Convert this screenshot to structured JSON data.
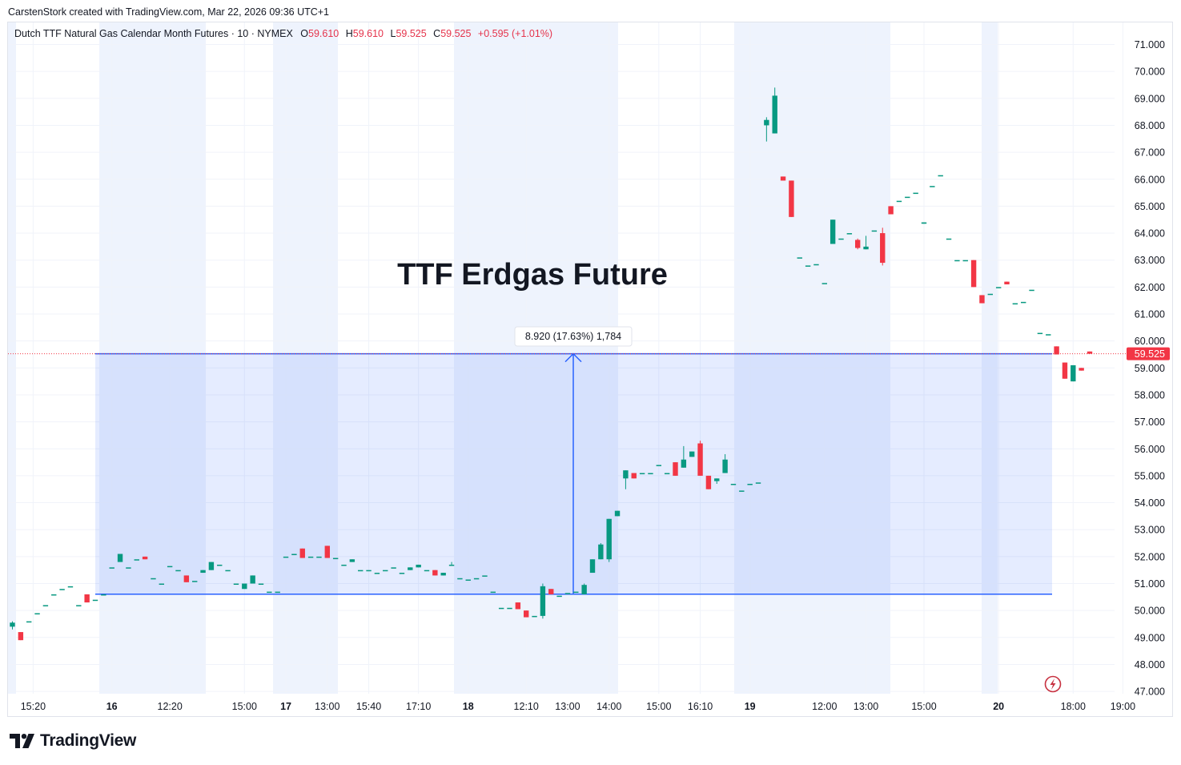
{
  "header": {
    "creator_line": "CarstenStork created with TradingView.com, Mar 22, 2026 09:36 UTC+1"
  },
  "legend": {
    "symbol": "Dutch TTF Natural Gas Calendar Month Futures · 10 · NYMEX",
    "open_label": "O",
    "open_value": "59.610",
    "high_label": "H",
    "high_value": "59.610",
    "low_label": "L",
    "low_value": "59.525",
    "close_label": "C",
    "close_value": "59.525",
    "change": "+0.595 (+1.01%)"
  },
  "annotation": {
    "title": "TTF Erdgas Future",
    "measure_label": "8.920 (17.63%) 1,784",
    "range_low": 50.605,
    "range_high": 59.525
  },
  "last_price": {
    "value": 59.525,
    "label": "59.525"
  },
  "footer": {
    "brand": "TradingView",
    "logo_icon": "tradingview-logo-icon",
    "alert_icon": "lightning-icon"
  },
  "colors": {
    "up": "#089981",
    "down": "#f23645",
    "measure": "#2962ff",
    "session_band": "#eef3fd",
    "price_label_bg": "#f23645"
  },
  "chart_data": {
    "type": "candlestick",
    "ylim": [
      46.6,
      71.4
    ],
    "y_ticks": [
      47,
      48,
      49,
      50,
      51,
      52,
      53,
      54,
      55,
      56,
      57,
      58,
      59,
      60,
      61,
      62,
      63,
      64,
      65,
      66,
      67,
      68,
      69,
      70,
      71
    ],
    "y_tick_labels": [
      "47.000",
      "48.000",
      "49.000",
      "50.000",
      "51.000",
      "52.000",
      "53.000",
      "54.000",
      "55.000",
      "56.000",
      "57.000",
      "58.000",
      "59.000",
      "60.000",
      "61.000",
      "62.000",
      "63.000",
      "64.000",
      "65.000",
      "66.000",
      "67.000",
      "68.000",
      "69.000",
      "70.000",
      "71.000"
    ],
    "x_axis_labels": [
      {
        "label": "15:20",
        "bar": 2.5,
        "bold": false
      },
      {
        "label": "16",
        "bar": 12,
        "bold": true
      },
      {
        "label": "12:20",
        "bar": 19,
        "bold": false
      },
      {
        "label": "15:00",
        "bar": 28,
        "bold": false
      },
      {
        "label": "17",
        "bar": 33,
        "bold": true
      },
      {
        "label": "13:00",
        "bar": 38,
        "bold": false
      },
      {
        "label": "15:40",
        "bar": 43,
        "bold": false
      },
      {
        "label": "17:10",
        "bar": 49,
        "bold": false
      },
      {
        "label": "18",
        "bar": 55,
        "bold": true
      },
      {
        "label": "12:10",
        "bar": 62,
        "bold": false
      },
      {
        "label": "13:00",
        "bar": 67,
        "bold": false
      },
      {
        "label": "14:00",
        "bar": 72,
        "bold": false
      },
      {
        "label": "15:00",
        "bar": 78,
        "bold": false
      },
      {
        "label": "16:10",
        "bar": 83,
        "bold": false
      },
      {
        "label": "19",
        "bar": 89,
        "bold": true
      },
      {
        "label": "12:00",
        "bar": 98,
        "bold": false
      },
      {
        "label": "13:00",
        "bar": 103,
        "bold": false
      },
      {
        "label": "15:00",
        "bar": 110,
        "bold": false
      },
      {
        "label": "20",
        "bar": 119,
        "bold": true
      },
      {
        "label": "18:00",
        "bar": 128,
        "bold": false
      },
      {
        "label": "19:00",
        "bar": 134,
        "bold": false
      }
    ],
    "candles": [
      {
        "o": 49.4,
        "h": 49.6,
        "l": 49.3,
        "c": 49.55
      },
      {
        "o": 49.2,
        "h": 49.2,
        "l": 48.9,
        "c": 48.9
      },
      {
        "o": 49.6,
        "h": 49.6,
        "l": 49.6,
        "c": 49.6
      },
      {
        "o": 49.9,
        "h": 49.9,
        "l": 49.9,
        "c": 49.9
      },
      {
        "o": 50.2,
        "h": 50.2,
        "l": 50.2,
        "c": 50.2
      },
      {
        "o": 50.6,
        "h": 50.6,
        "l": 50.6,
        "c": 50.6
      },
      {
        "o": 50.8,
        "h": 50.8,
        "l": 50.8,
        "c": 50.8
      },
      {
        "o": 50.9,
        "h": 50.9,
        "l": 50.9,
        "c": 50.9
      },
      {
        "o": 50.2,
        "h": 50.2,
        "l": 50.2,
        "c": 50.2
      },
      {
        "o": 50.6,
        "h": 50.6,
        "l": 50.3,
        "c": 50.3
      },
      {
        "o": 50.4,
        "h": 50.4,
        "l": 50.4,
        "c": 50.4
      },
      {
        "o": 50.6,
        "h": 50.6,
        "l": 50.6,
        "c": 50.6
      },
      {
        "o": 51.6,
        "h": 51.6,
        "l": 51.6,
        "c": 51.6
      },
      {
        "o": 51.8,
        "h": 52.1,
        "l": 51.8,
        "c": 52.1
      },
      {
        "o": 51.6,
        "h": 51.6,
        "l": 51.6,
        "c": 51.6
      },
      {
        "o": 51.9,
        "h": 51.9,
        "l": 51.9,
        "c": 51.9
      },
      {
        "o": 52.0,
        "h": 52.0,
        "l": 51.9,
        "c": 51.9
      },
      {
        "o": 51.2,
        "h": 51.2,
        "l": 51.2,
        "c": 51.2
      },
      {
        "o": 51.0,
        "h": 51.0,
        "l": 51.0,
        "c": 51.0
      },
      {
        "o": 51.65,
        "h": 51.65,
        "l": 51.65,
        "c": 51.65
      },
      {
        "o": 51.5,
        "h": 51.5,
        "l": 51.5,
        "c": 51.5
      },
      {
        "o": 51.3,
        "h": 51.3,
        "l": 51.05,
        "c": 51.05
      },
      {
        "o": 51.1,
        "h": 51.1,
        "l": 51.1,
        "c": 51.1
      },
      {
        "o": 51.4,
        "h": 51.5,
        "l": 51.4,
        "c": 51.5
      },
      {
        "o": 51.5,
        "h": 51.8,
        "l": 51.5,
        "c": 51.8
      },
      {
        "o": 51.7,
        "h": 51.7,
        "l": 51.7,
        "c": 51.7
      },
      {
        "o": 51.5,
        "h": 51.5,
        "l": 51.5,
        "c": 51.5
      },
      {
        "o": 51.0,
        "h": 51.0,
        "l": 51.0,
        "c": 51.0
      },
      {
        "o": 50.8,
        "h": 51.0,
        "l": 50.8,
        "c": 51.0
      },
      {
        "o": 51.0,
        "h": 51.3,
        "l": 51.0,
        "c": 51.3
      },
      {
        "o": 51.0,
        "h": 51.0,
        "l": 51.0,
        "c": 51.0
      },
      {
        "o": 50.7,
        "h": 50.7,
        "l": 50.7,
        "c": 50.7
      },
      {
        "o": 50.7,
        "h": 50.7,
        "l": 50.7,
        "c": 50.7
      },
      {
        "o": 52.0,
        "h": 52.0,
        "l": 52.0,
        "c": 52.0
      },
      {
        "o": 52.1,
        "h": 52.1,
        "l": 52.1,
        "c": 52.1
      },
      {
        "o": 52.3,
        "h": 52.3,
        "l": 51.95,
        "c": 51.95
      },
      {
        "o": 52.0,
        "h": 52.0,
        "l": 52.0,
        "c": 52.0
      },
      {
        "o": 52.0,
        "h": 52.0,
        "l": 52.0,
        "c": 52.0
      },
      {
        "o": 52.4,
        "h": 52.4,
        "l": 51.95,
        "c": 51.95
      },
      {
        "o": 51.95,
        "h": 51.95,
        "l": 51.95,
        "c": 51.95
      },
      {
        "o": 51.7,
        "h": 51.7,
        "l": 51.7,
        "c": 51.7
      },
      {
        "o": 51.8,
        "h": 51.9,
        "l": 51.8,
        "c": 51.9
      },
      {
        "o": 51.5,
        "h": 51.5,
        "l": 51.5,
        "c": 51.5
      },
      {
        "o": 51.5,
        "h": 51.5,
        "l": 51.5,
        "c": 51.5
      },
      {
        "o": 51.4,
        "h": 51.4,
        "l": 51.4,
        "c": 51.4
      },
      {
        "o": 51.5,
        "h": 51.5,
        "l": 51.5,
        "c": 51.5
      },
      {
        "o": 51.6,
        "h": 51.6,
        "l": 51.6,
        "c": 51.6
      },
      {
        "o": 51.4,
        "h": 51.4,
        "l": 51.4,
        "c": 51.4
      },
      {
        "o": 51.5,
        "h": 51.6,
        "l": 51.5,
        "c": 51.6
      },
      {
        "o": 51.6,
        "h": 51.7,
        "l": 51.6,
        "c": 51.7
      },
      {
        "o": 51.5,
        "h": 51.5,
        "l": 51.5,
        "c": 51.5
      },
      {
        "o": 51.5,
        "h": 51.5,
        "l": 51.3,
        "c": 51.3
      },
      {
        "o": 51.3,
        "h": 51.4,
        "l": 51.3,
        "c": 51.4
      },
      {
        "o": 51.7,
        "h": 51.8,
        "l": 51.7,
        "c": 51.7
      },
      {
        "o": 51.2,
        "h": 51.2,
        "l": 51.2,
        "c": 51.2
      },
      {
        "o": 51.15,
        "h": 51.15,
        "l": 51.15,
        "c": 51.15
      },
      {
        "o": 51.2,
        "h": 51.2,
        "l": 51.2,
        "c": 51.2
      },
      {
        "o": 51.3,
        "h": 51.3,
        "l": 51.3,
        "c": 51.3
      },
      {
        "o": 50.7,
        "h": 50.7,
        "l": 50.7,
        "c": 50.7
      },
      {
        "o": 50.1,
        "h": 50.1,
        "l": 50.1,
        "c": 50.1
      },
      {
        "o": 50.1,
        "h": 50.1,
        "l": 50.1,
        "c": 50.1
      },
      {
        "o": 50.3,
        "h": 50.3,
        "l": 50.05,
        "c": 50.05
      },
      {
        "o": 50.0,
        "h": 50.0,
        "l": 49.75,
        "c": 49.75
      },
      {
        "o": 49.8,
        "h": 49.8,
        "l": 49.8,
        "c": 49.8
      },
      {
        "o": 49.8,
        "h": 51.0,
        "l": 49.7,
        "c": 50.9
      },
      {
        "o": 50.8,
        "h": 50.8,
        "l": 50.6,
        "c": 50.6
      },
      {
        "o": 50.55,
        "h": 50.55,
        "l": 50.55,
        "c": 50.55
      },
      {
        "o": 50.65,
        "h": 50.65,
        "l": 50.65,
        "c": 50.65
      },
      {
        "o": 50.7,
        "h": 50.7,
        "l": 50.7,
        "c": 50.7
      },
      {
        "o": 50.6,
        "h": 51.0,
        "l": 50.6,
        "c": 50.95
      },
      {
        "o": 51.4,
        "h": 51.9,
        "l": 51.4,
        "c": 51.9
      },
      {
        "o": 51.9,
        "h": 52.5,
        "l": 51.9,
        "c": 52.45
      },
      {
        "o": 51.9,
        "h": 53.4,
        "l": 51.8,
        "c": 53.4
      },
      {
        "o": 53.5,
        "h": 53.7,
        "l": 53.5,
        "c": 53.7
      },
      {
        "o": 54.9,
        "h": 55.2,
        "l": 54.5,
        "c": 55.2
      },
      {
        "o": 55.1,
        "h": 55.1,
        "l": 54.9,
        "c": 54.9
      },
      {
        "o": 55.1,
        "h": 55.1,
        "l": 55.1,
        "c": 55.1
      },
      {
        "o": 55.1,
        "h": 55.1,
        "l": 55.1,
        "c": 55.1
      },
      {
        "o": 55.4,
        "h": 55.4,
        "l": 55.4,
        "c": 55.4
      },
      {
        "o": 55.1,
        "h": 55.1,
        "l": 55.1,
        "c": 55.1
      },
      {
        "o": 55.5,
        "h": 55.5,
        "l": 55.0,
        "c": 55.0
      },
      {
        "o": 55.3,
        "h": 56.1,
        "l": 55.3,
        "c": 55.6
      },
      {
        "o": 55.7,
        "h": 55.9,
        "l": 55.7,
        "c": 55.9
      },
      {
        "o": 56.2,
        "h": 56.3,
        "l": 55.0,
        "c": 55.0
      },
      {
        "o": 55.0,
        "h": 55.0,
        "l": 54.5,
        "c": 54.5
      },
      {
        "o": 54.8,
        "h": 54.9,
        "l": 54.7,
        "c": 54.9
      },
      {
        "o": 55.1,
        "h": 55.8,
        "l": 55.1,
        "c": 55.6
      },
      {
        "o": 54.7,
        "h": 54.7,
        "l": 54.7,
        "c": 54.7
      },
      {
        "o": 54.45,
        "h": 54.45,
        "l": 54.45,
        "c": 54.45
      },
      {
        "o": 54.7,
        "h": 54.7,
        "l": 54.7,
        "c": 54.7
      },
      {
        "o": 54.75,
        "h": 54.75,
        "l": 54.75,
        "c": 54.75
      },
      {
        "o": 68.0,
        "h": 68.3,
        "l": 67.4,
        "c": 68.2
      },
      {
        "o": 67.7,
        "h": 69.4,
        "l": 67.7,
        "c": 69.1
      },
      {
        "o": 66.1,
        "h": 66.1,
        "l": 65.95,
        "c": 65.95
      },
      {
        "o": 65.95,
        "h": 65.95,
        "l": 64.6,
        "c": 64.6
      },
      {
        "o": 63.1,
        "h": 63.1,
        "l": 63.1,
        "c": 63.1
      },
      {
        "o": 62.8,
        "h": 62.8,
        "l": 62.8,
        "c": 62.8
      },
      {
        "o": 62.85,
        "h": 62.85,
        "l": 62.85,
        "c": 62.85
      },
      {
        "o": 62.15,
        "h": 62.15,
        "l": 62.15,
        "c": 62.15
      },
      {
        "o": 63.6,
        "h": 64.5,
        "l": 63.6,
        "c": 64.5
      },
      {
        "o": 63.8,
        "h": 63.8,
        "l": 63.8,
        "c": 63.8
      },
      {
        "o": 64.0,
        "h": 64.0,
        "l": 64.0,
        "c": 64.0
      },
      {
        "o": 63.75,
        "h": 63.8,
        "l": 63.4,
        "c": 63.45
      },
      {
        "o": 63.4,
        "h": 63.9,
        "l": 63.4,
        "c": 63.5
      },
      {
        "o": 64.1,
        "h": 64.1,
        "l": 64.1,
        "c": 64.1
      },
      {
        "o": 64.0,
        "h": 64.2,
        "l": 62.8,
        "c": 62.9
      },
      {
        "o": 65.0,
        "h": 65.0,
        "l": 64.7,
        "c": 64.7
      },
      {
        "o": 65.2,
        "h": 65.2,
        "l": 65.2,
        "c": 65.2
      },
      {
        "o": 65.35,
        "h": 65.35,
        "l": 65.35,
        "c": 65.35
      },
      {
        "o": 65.5,
        "h": 65.5,
        "l": 65.5,
        "c": 65.5
      },
      {
        "o": 64.35,
        "h": 64.4,
        "l": 64.35,
        "c": 64.4
      },
      {
        "o": 65.75,
        "h": 65.75,
        "l": 65.75,
        "c": 65.75
      },
      {
        "o": 66.15,
        "h": 66.15,
        "l": 66.15,
        "c": 66.15
      },
      {
        "o": 63.8,
        "h": 63.8,
        "l": 63.8,
        "c": 63.8
      },
      {
        "o": 63.0,
        "h": 63.0,
        "l": 63.0,
        "c": 63.0
      },
      {
        "o": 63.0,
        "h": 63.0,
        "l": 63.0,
        "c": 63.0
      },
      {
        "o": 63.0,
        "h": 63.0,
        "l": 62.0,
        "c": 62.0
      },
      {
        "o": 61.7,
        "h": 61.7,
        "l": 61.4,
        "c": 61.4
      },
      {
        "o": 61.75,
        "h": 61.75,
        "l": 61.75,
        "c": 61.75
      },
      {
        "o": 62.0,
        "h": 62.0,
        "l": 62.0,
        "c": 62.0
      },
      {
        "o": 62.2,
        "h": 62.2,
        "l": 62.1,
        "c": 62.1
      },
      {
        "o": 61.4,
        "h": 61.4,
        "l": 61.4,
        "c": 61.4
      },
      {
        "o": 61.45,
        "h": 61.45,
        "l": 61.45,
        "c": 61.45
      },
      {
        "o": 61.9,
        "h": 61.9,
        "l": 61.9,
        "c": 61.9
      },
      {
        "o": 60.3,
        "h": 60.3,
        "l": 60.3,
        "c": 60.3
      },
      {
        "o": 60.25,
        "h": 60.25,
        "l": 60.25,
        "c": 60.25
      },
      {
        "o": 59.8,
        "h": 59.8,
        "l": 59.5,
        "c": 59.5
      },
      {
        "o": 59.2,
        "h": 59.2,
        "l": 58.6,
        "c": 58.6
      },
      {
        "o": 58.5,
        "h": 59.1,
        "l": 58.5,
        "c": 59.1
      },
      {
        "o": 59.0,
        "h": 59.0,
        "l": 58.9,
        "c": 58.9
      },
      {
        "o": 59.61,
        "h": 59.61,
        "l": 59.525,
        "c": 59.525
      }
    ]
  }
}
